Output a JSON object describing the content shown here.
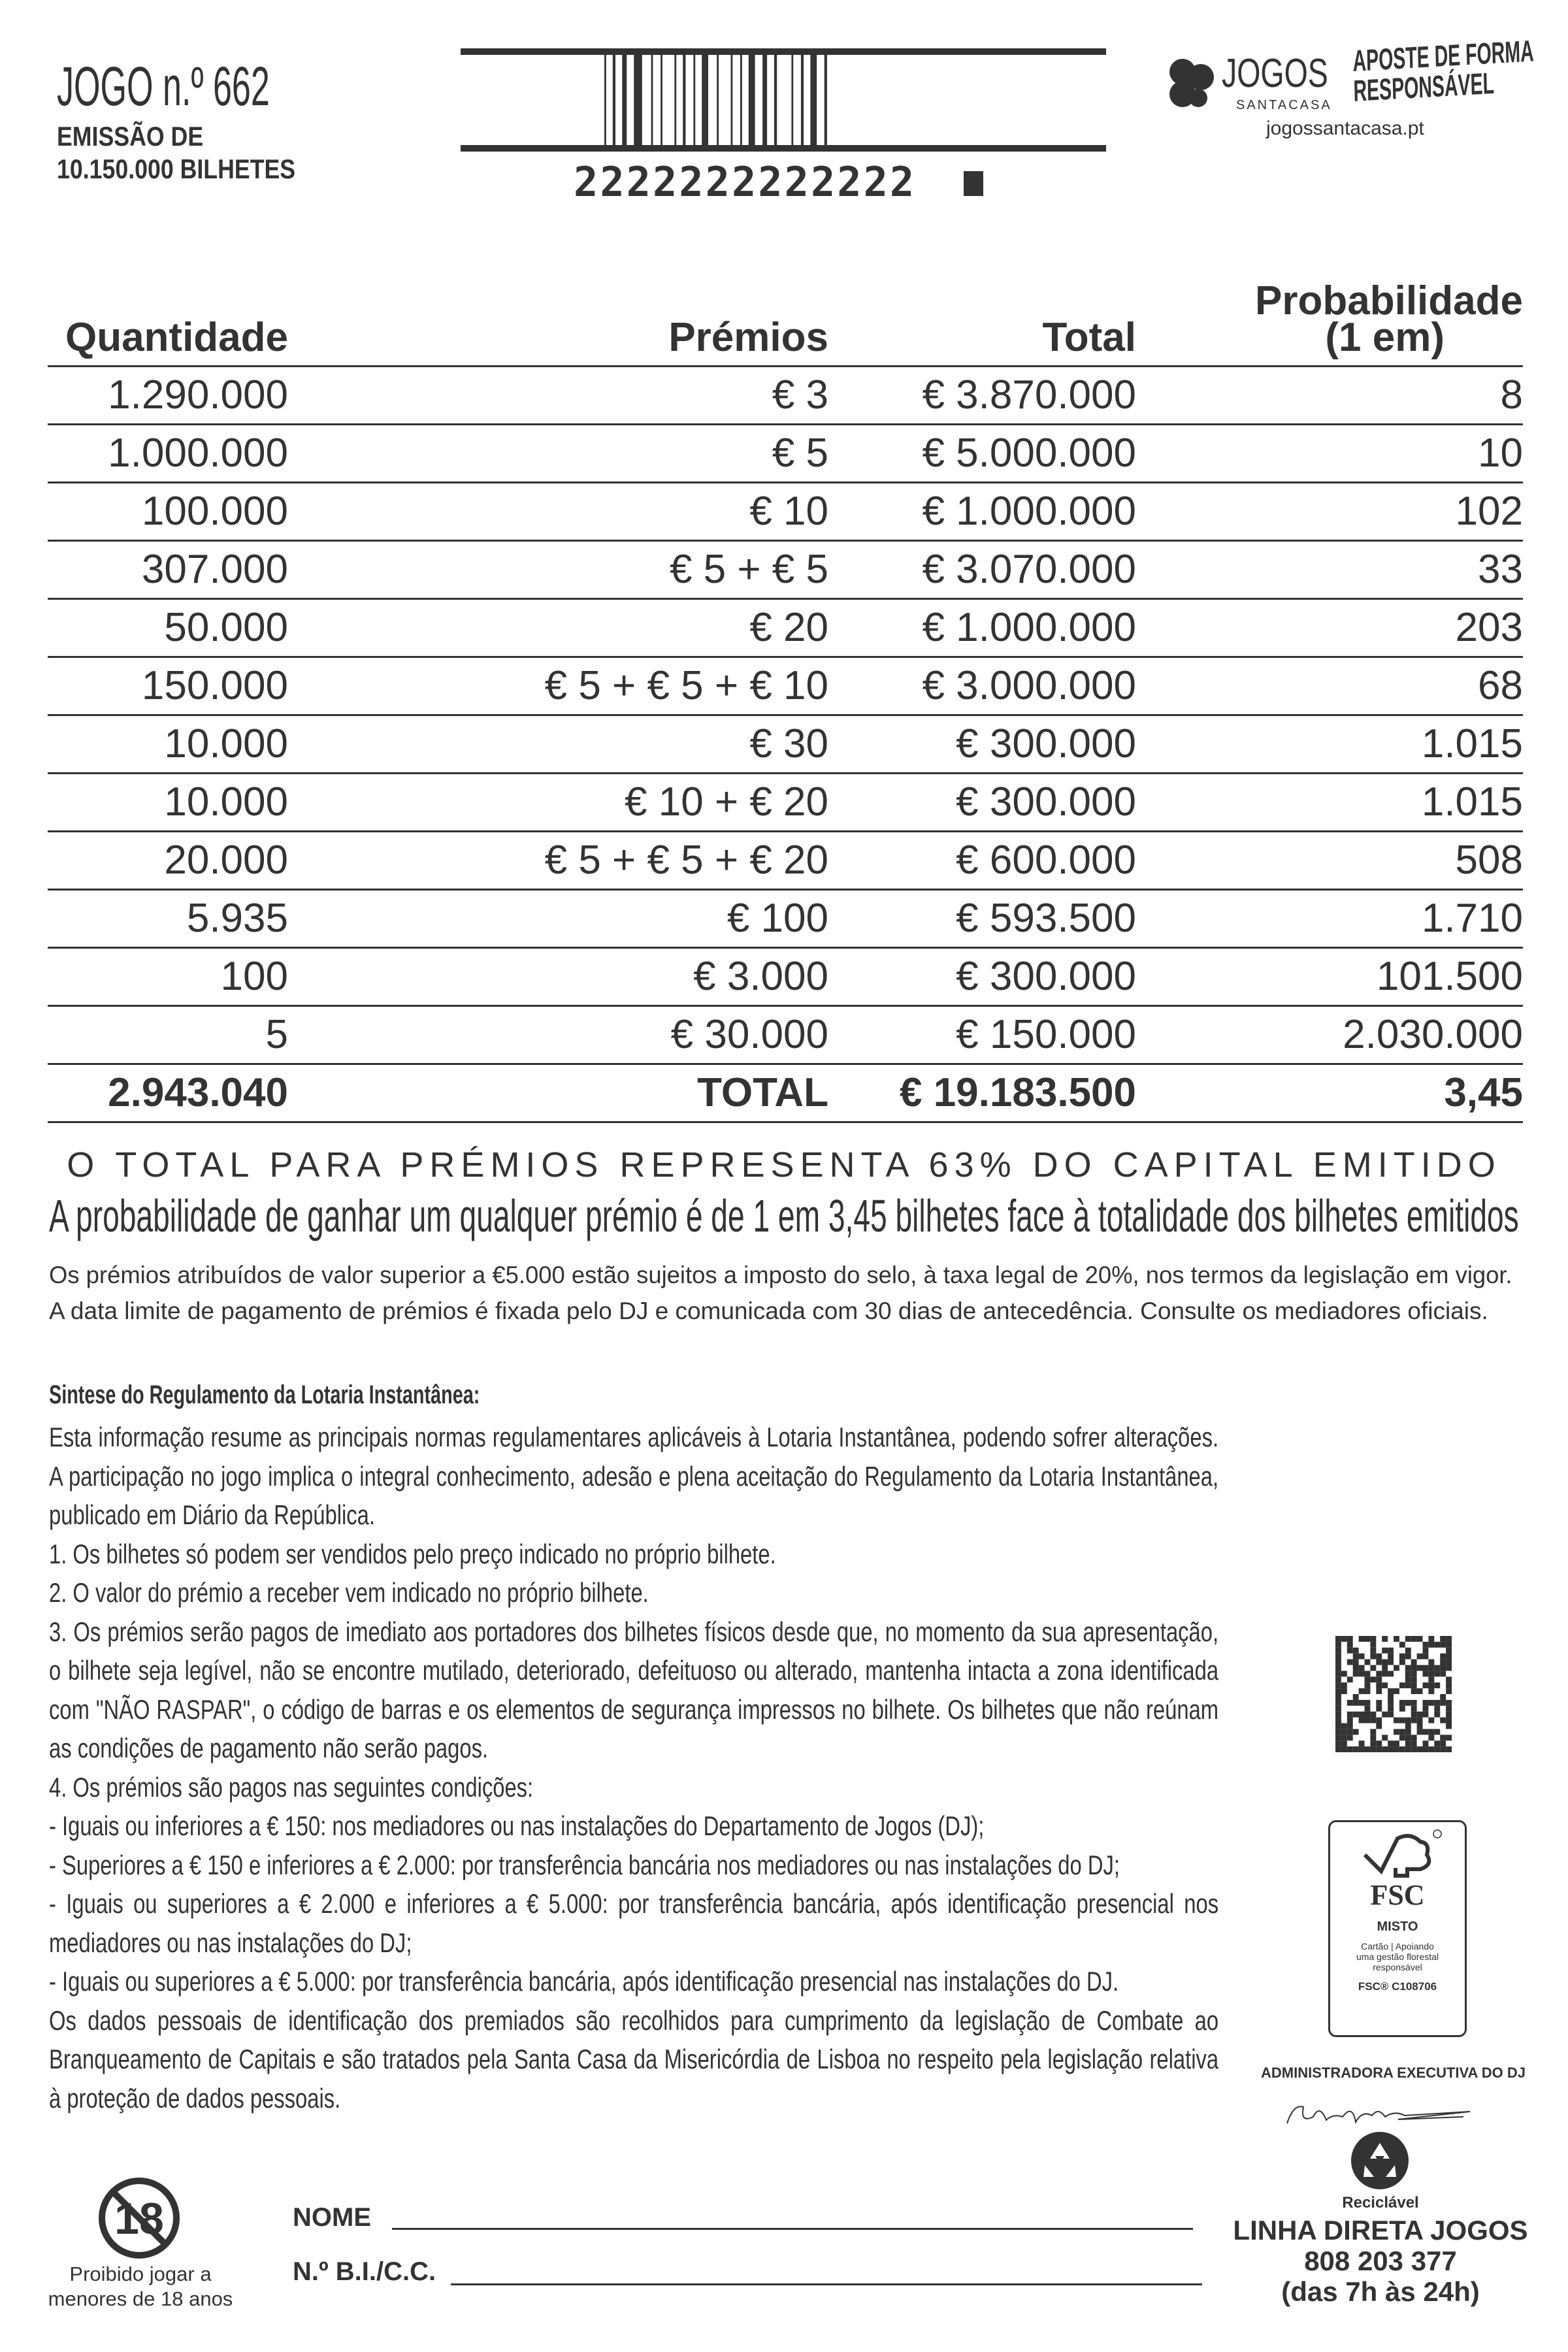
{
  "header": {
    "game": "JOGO n.º 662",
    "emission_line1": "EMISSÃO DE",
    "emission_line2": "10.150.000 BILHETES",
    "barcode_number": "2222222222222",
    "logo_text": "JOGOS",
    "logo_subtext": "SANTACASA",
    "slogan_line1": "APOSTE DE FORMA",
    "slogan_line2": "RESPONSÁVEL",
    "website": "jogossantacasa.pt"
  },
  "table": {
    "headers": {
      "quantity": "Quantidade",
      "prizes": "Prémios",
      "total": "Total",
      "probability_line1": "Probabilidade",
      "probability_line2": "(1 em)"
    },
    "rows": [
      {
        "qty": "1.290.000",
        "prize": "€ 3",
        "total": "€ 3.870.000",
        "prob": "8"
      },
      {
        "qty": "1.000.000",
        "prize": "€ 5",
        "total": "€ 5.000.000",
        "prob": "10"
      },
      {
        "qty": "100.000",
        "prize": "€ 10",
        "total": "€ 1.000.000",
        "prob": "102"
      },
      {
        "qty": "307.000",
        "prize": "€ 5 + € 5",
        "total": "€ 3.070.000",
        "prob": "33"
      },
      {
        "qty": "50.000",
        "prize": "€ 20",
        "total": "€ 1.000.000",
        "prob": "203"
      },
      {
        "qty": "150.000",
        "prize": "€ 5 + € 5 + € 10",
        "total": "€ 3.000.000",
        "prob": "68"
      },
      {
        "qty": "10.000",
        "prize": "€ 30",
        "total": "€ 300.000",
        "prob": "1.015"
      },
      {
        "qty": "10.000",
        "prize": "€ 10 + € 20",
        "total": "€ 300.000",
        "prob": "1.015"
      },
      {
        "qty": "20.000",
        "prize": "€ 5 + € 5 + € 20",
        "total": "€ 600.000",
        "prob": "508"
      },
      {
        "qty": "5.935",
        "prize": "€ 100",
        "total": "€ 593.500",
        "prob": "1.710"
      },
      {
        "qty": "100",
        "prize": "€ 3.000",
        "total": "€ 300.000",
        "prob": "101.500"
      },
      {
        "qty": "5",
        "prize": "€ 30.000",
        "total": "€ 150.000",
        "prob": "2.030.000"
      }
    ],
    "total_row": {
      "qty": "2.943.040",
      "prize": "TOTAL",
      "total": "€ 19.183.500",
      "prob": "3,45"
    }
  },
  "summary": {
    "capital": "O TOTAL PARA PRÉMIOS REPRESENTA 63% DO CAPITAL EMITIDO",
    "probability": "A probabilidade de ganhar um qualquer prémio é de 1 em 3,45 bilhetes face à totalidade dos bilhetes emitidos",
    "tax_note": "Os prémios atribuídos de valor superior a €5.000 estão sujeitos a imposto do selo, à taxa legal de 20%, nos termos da legislação em vigor.",
    "deadline_note": "A data limite de pagamento de prémios é fixada pelo DJ e comunicada com 30 dias de antecedência. Consulte os mediadores oficiais."
  },
  "regulation": {
    "title": "Sintese do Regulamento da Lotaria Instantânea:",
    "paragraphs": [
      "Esta informação resume as principais normas regulamentares aplicáveis à Lotaria Instantânea, podendo sofrer alterações. A participação no jogo implica o integral conhecimento, adesão e plena aceitação do Regulamento da Lotaria Instantânea, publicado em Diário da República.",
      "1. Os bilhetes só podem ser vendidos pelo preço indicado no próprio bilhete.",
      "2. O valor do prémio a receber vem indicado no próprio bilhete.",
      "3. Os prémios serão pagos de imediato aos portadores dos bilhetes físicos desde que, no momento da sua apresentação, o bilhete seja legível, não se encontre mutilado, deteriorado, defeituoso ou alterado, mantenha intacta a zona identificada com \"NÃO RASPAR\", o código de barras e os elementos de segurança impressos no bilhete. Os bilhetes que não reúnam as condições de pagamento não serão pagos.",
      "4. Os prémios são pagos nas seguintes condições:",
      "- Iguais ou inferiores a € 150: nos mediadores ou nas instalações do Departamento de Jogos (DJ);",
      "- Superiores a € 150 e inferiores a € 2.000: por transferência bancária nos mediadores ou nas instalações do DJ;",
      "- Iguais ou superiores a € 2.000 e inferiores a € 5.000: por transferência bancária, após identificação presencial nos mediadores ou nas instalações do DJ;",
      "- Iguais ou superiores a € 5.000: por transferência bancária, após identificação presencial nas instalações do DJ.",
      "Os dados pessoais de identificação dos premiados são recolhidos para cumprimento da legislação de Combate ao Branqueamento de Capitais e são tratados pela Santa Casa da Misericórdia de Lisboa no respeito pela legislação relativa à proteção de dados pessoais."
    ]
  },
  "fsc": {
    "logo": "FSC",
    "type": "MISTO",
    "line1": "Cartão | Apoiando",
    "line2": "uma gestão florestal",
    "line3": "responsável",
    "code": "FSC® C108706"
  },
  "footer": {
    "admin": "ADMINISTRADORA EXECUTIVA DO DJ",
    "recyclable": "Reciclável",
    "hotline_title": "LINHA DIRETA JOGOS",
    "hotline_number": "808 203 377",
    "hotline_hours": "(das 7h às 24h)",
    "age_icon_text": "18",
    "age_line1": "Proibido jogar a",
    "age_line2": "menores de 18 anos",
    "name_label": "NOME",
    "id_label": "N.º B.I./C.C."
  },
  "colors": {
    "ink": "#333333"
  }
}
